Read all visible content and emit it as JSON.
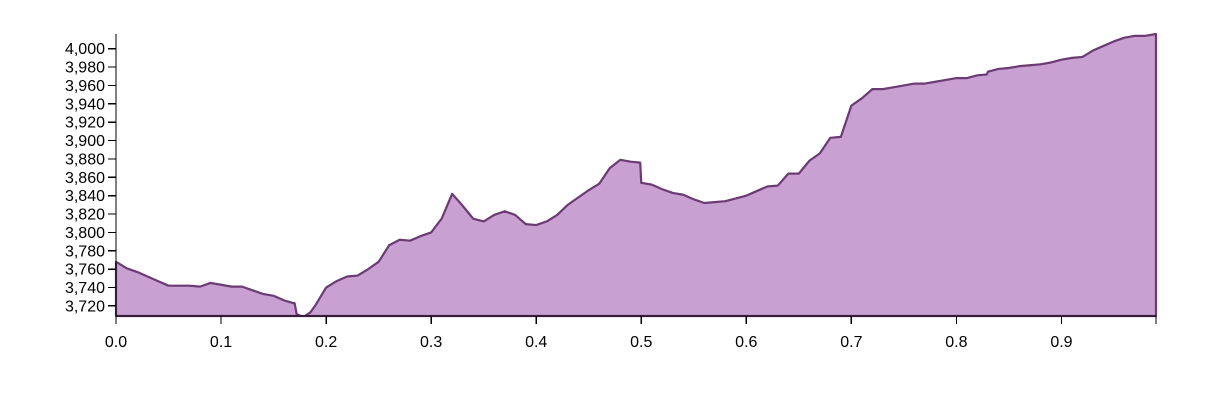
{
  "chart_data": {
    "type": "area",
    "title": "",
    "xlabel": "",
    "ylabel": "",
    "xlim": [
      0,
      0.99
    ],
    "ylim": [
      3709,
      4016
    ],
    "grid": false,
    "legend": "none",
    "colors": {
      "fill": "#c9a0d2",
      "line": "#6b3b73",
      "axis": "#000000"
    },
    "x_ticks": [
      "0.0",
      "0.1",
      "0.2",
      "0.3",
      "0.4",
      "0.5",
      "0.6",
      "0.7",
      "0.8",
      "0.9"
    ],
    "y_ticks": [
      "3,720",
      "3,740",
      "3,760",
      "3,780",
      "3,800",
      "3,820",
      "3,840",
      "3,860",
      "3,880",
      "3,900",
      "3,920",
      "3,940",
      "3,960",
      "3,980",
      "4,000"
    ],
    "series": [
      {
        "x": [
          0.0,
          0.003,
          0.01,
          0.02,
          0.03,
          0.04,
          0.05,
          0.06,
          0.07,
          0.08,
          0.09,
          0.1,
          0.11,
          0.12,
          0.13,
          0.14,
          0.15,
          0.16,
          0.169,
          0.17,
          0.172,
          0.176,
          0.18,
          0.185,
          0.19,
          0.2,
          0.21,
          0.22,
          0.23,
          0.24,
          0.25,
          0.26,
          0.27,
          0.28,
          0.29,
          0.3,
          0.31,
          0.32,
          0.33,
          0.34,
          0.35,
          0.36,
          0.37,
          0.38,
          0.39,
          0.4,
          0.41,
          0.42,
          0.43,
          0.44,
          0.45,
          0.46,
          0.47,
          0.48,
          0.49,
          0.499,
          0.5,
          0.51,
          0.52,
          0.53,
          0.54,
          0.55,
          0.56,
          0.57,
          0.58,
          0.59,
          0.6,
          0.61,
          0.62,
          0.63,
          0.64,
          0.65,
          0.66,
          0.67,
          0.68,
          0.69,
          0.7,
          0.71,
          0.72,
          0.73,
          0.74,
          0.75,
          0.76,
          0.77,
          0.78,
          0.79,
          0.8,
          0.81,
          0.82,
          0.829,
          0.83,
          0.84,
          0.85,
          0.86,
          0.87,
          0.88,
          0.89,
          0.9,
          0.91,
          0.92,
          0.93,
          0.94,
          0.95,
          0.96,
          0.97,
          0.98,
          0.99
        ],
        "values": [
          3768,
          3766,
          3761,
          3757,
          3752,
          3747,
          3742,
          3742,
          3742,
          3741,
          3745,
          3743,
          3741,
          3741,
          3737,
          3733,
          3731,
          3726,
          3723,
          3723,
          3711,
          3709,
          3709,
          3713,
          3721,
          3740,
          3747,
          3752,
          3753,
          3760,
          3768,
          3786,
          3792,
          3791,
          3796,
          3800,
          3815,
          3842,
          3829,
          3815,
          3812,
          3819,
          3823,
          3819,
          3809,
          3808,
          3812,
          3819,
          3830,
          3838,
          3846,
          3853,
          3870,
          3879,
          3877,
          3876,
          3854,
          3852,
          3847,
          3843,
          3841,
          3836,
          3832,
          3833,
          3834,
          3837,
          3840,
          3845,
          3850,
          3851,
          3864,
          3864,
          3878,
          3886,
          3903,
          3904,
          3938,
          3946,
          3956,
          3956,
          3958,
          3960,
          3962,
          3962,
          3964,
          3966,
          3968,
          3968,
          3971,
          3972,
          3975,
          3978,
          3979,
          3981,
          3982,
          3983,
          3985,
          3988,
          3990,
          3991,
          3998,
          4003,
          4008,
          4012,
          4014,
          4014,
          4016
        ]
      }
    ]
  }
}
